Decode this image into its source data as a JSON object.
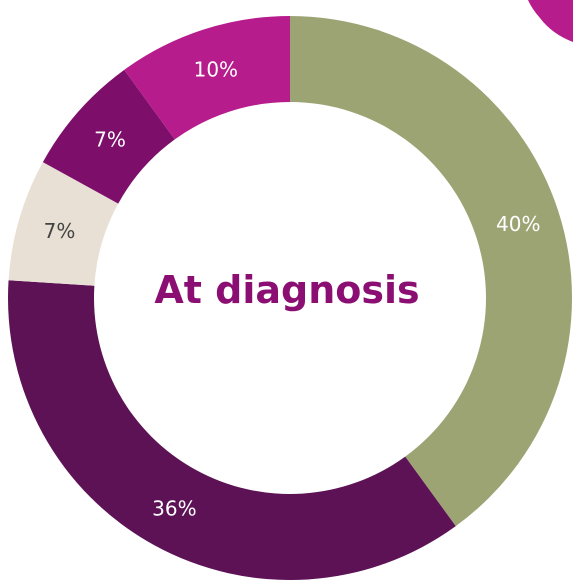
{
  "chart_data": {
    "type": "pie",
    "title": "At diagnosis",
    "categories": [
      "",
      "",
      "",
      "",
      ""
    ],
    "values": [
      40,
      36,
      7,
      7,
      10
    ],
    "labels": [
      "40%",
      "36%",
      "7%",
      "7%",
      "10%"
    ],
    "colors": [
      "#9DA474",
      "#5C1255",
      "#E8E0D4",
      "#7D0F6B",
      "#B71C8C"
    ],
    "label_colors": [
      "#ffffff",
      "#ffffff",
      "#444444",
      "#ffffff",
      "#ffffff"
    ],
    "donut": true
  },
  "colors": {
    "title": "#8B0F72",
    "corner_accent": "#B71C8C"
  }
}
